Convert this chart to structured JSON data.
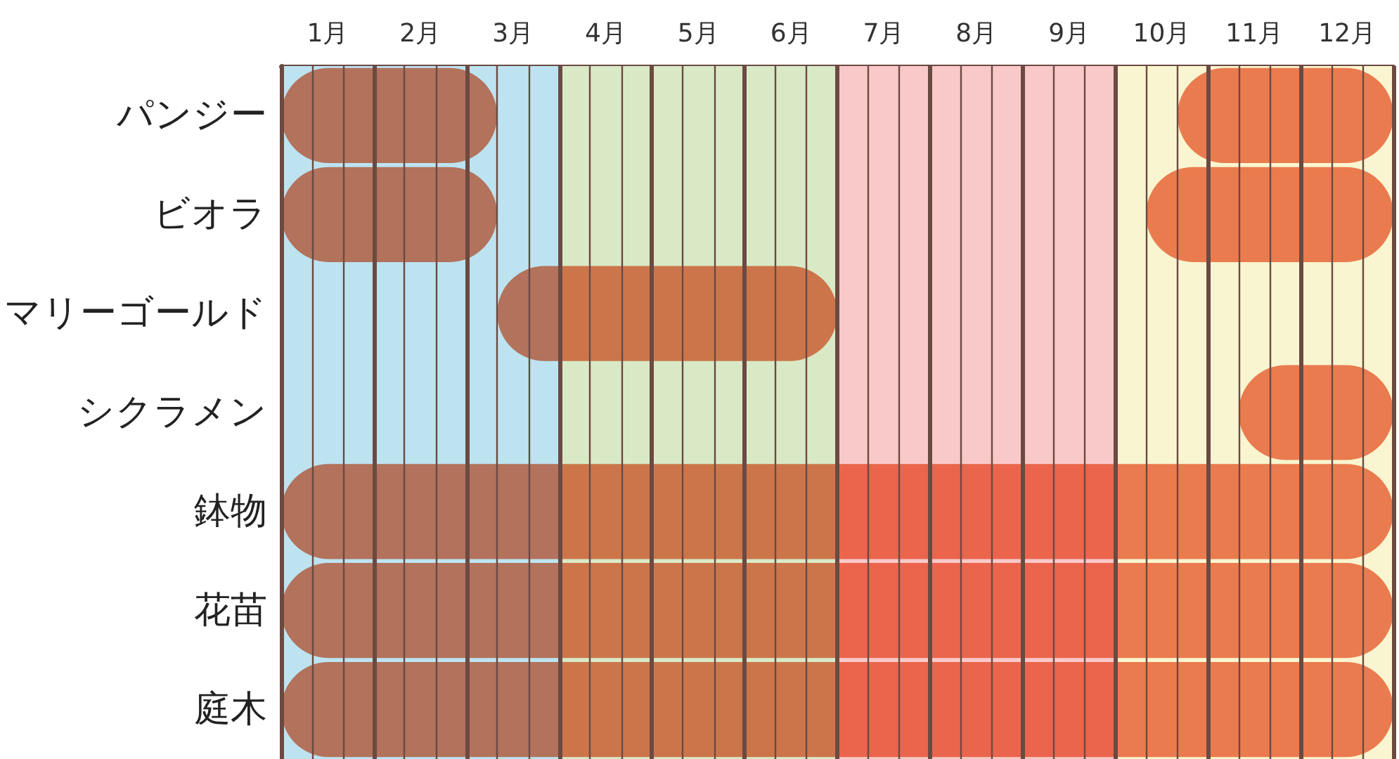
{
  "chart_data": {
    "type": "bar",
    "orientation": "horizontal",
    "categories": [
      "パンジー",
      "ビオラ",
      "マリーゴールド",
      "シクラメン",
      "鉢物",
      "花苗",
      "庭木"
    ],
    "series": [
      {
        "color": "#f08060",
        "base": [
          0,
          0,
          2.33,
          null,
          0,
          0,
          0
        ],
        "values": [
          2.33,
          2.33,
          3.67,
          null,
          12,
          12,
          12
        ]
      },
      {
        "color": "#f08060",
        "base": [
          9.67,
          9.33,
          null,
          10.33,
          null,
          null,
          null
        ],
        "values": [
          2.33,
          2.67,
          null,
          1.67,
          null,
          null,
          null
        ]
      }
    ],
    "xlim": [
      0,
      12
    ],
    "xticks": [
      {
        "value": 0,
        "label": null
      },
      {
        "value": 0.33,
        "label": null
      },
      {
        "value": 0.5,
        "label": "1月"
      },
      {
        "value": 0.67,
        "label": null
      },
      {
        "value": 1,
        "label": null
      },
      {
        "value": 1.33,
        "label": null
      },
      {
        "value": 1.5,
        "label": "2月"
      },
      {
        "value": 1.67,
        "label": null
      },
      {
        "value": 2,
        "label": null
      },
      {
        "value": 2.33,
        "label": null
      },
      {
        "value": 2.5,
        "label": "3月"
      },
      {
        "value": 2.67,
        "label": null
      },
      {
        "value": 3,
        "label": null
      },
      {
        "value": 3.33,
        "label": null
      },
      {
        "value": 3.5,
        "label": "4月"
      },
      {
        "value": 3.67,
        "label": null
      },
      {
        "value": 4,
        "label": null
      },
      {
        "value": 4.33,
        "label": null
      },
      {
        "value": 4.5,
        "label": "5月"
      },
      {
        "value": 4.67,
        "label": null
      },
      {
        "value": 5,
        "label": null
      },
      {
        "value": 5.33,
        "label": null
      },
      {
        "value": 5.5,
        "label": "6月"
      },
      {
        "value": 5.67,
        "label": null
      },
      {
        "value": 6,
        "label": null
      },
      {
        "value": 6.33,
        "label": null
      },
      {
        "value": 6.5,
        "label": "7月"
      },
      {
        "value": 6.67,
        "label": null
      },
      {
        "value": 7,
        "label": null
      },
      {
        "value": 7.33,
        "label": null
      },
      {
        "value": 7.5,
        "label": "8月"
      },
      {
        "value": 7.67,
        "label": null
      },
      {
        "value": 8,
        "label": null
      },
      {
        "value": 8.33,
        "label": null
      },
      {
        "value": 8.5,
        "label": "9月"
      },
      {
        "value": 8.67,
        "label": null
      },
      {
        "value": 9,
        "label": null
      },
      {
        "value": 9.33,
        "label": null
      },
      {
        "value": 9.5,
        "label": "10月"
      },
      {
        "value": 9.67,
        "label": null
      },
      {
        "value": 10,
        "label": null
      },
      {
        "value": 10.33,
        "label": null
      },
      {
        "value": 10.5,
        "label": "11月"
      },
      {
        "value": 10.67,
        "label": null
      },
      {
        "value": 11,
        "label": null
      },
      {
        "value": 11.33,
        "label": null
      },
      {
        "value": 11.5,
        "label": "12月"
      },
      {
        "value": 11.67,
        "label": null
      },
      {
        "value": 12,
        "label": null
      }
    ],
    "grid": true,
    "bands": [
      {
        "axis": "x",
        "from": 0,
        "to": 3,
        "color": "#bde3f1"
      },
      {
        "axis": "x",
        "from": 3,
        "to": 6,
        "color": "#d9e9c6"
      },
      {
        "axis": "x",
        "from": 6,
        "to": 9,
        "color": "#f9c9c9"
      },
      {
        "axis": "x",
        "from": 9,
        "to": 12,
        "color": "#f9f5d0"
      }
    ]
  }
}
